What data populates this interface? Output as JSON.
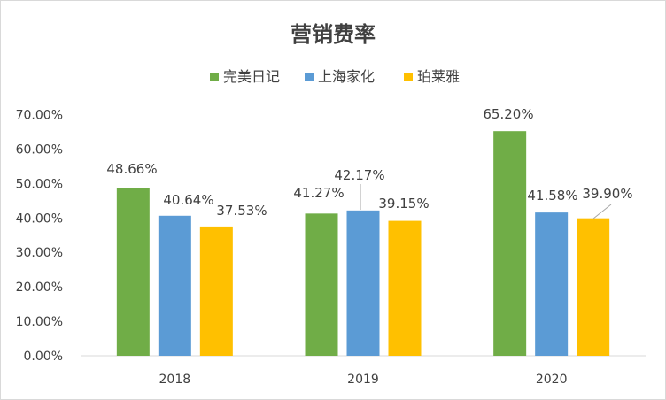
{
  "chart_data": {
    "type": "bar",
    "title": "营销费率",
    "categories": [
      "2018",
      "2019",
      "2020"
    ],
    "series": [
      {
        "name": "完美日记",
        "color": "#70ad47",
        "values": [
          48.66,
          41.27,
          65.2
        ],
        "labels": [
          "48.66%",
          "41.27%",
          "65.20%"
        ]
      },
      {
        "name": "上海家化",
        "color": "#5b9bd5",
        "values": [
          40.64,
          42.17,
          41.58
        ],
        "labels": [
          "40.64%",
          "42.17%",
          "41.58%"
        ]
      },
      {
        "name": "珀莱雅",
        "color": "#ffc000",
        "values": [
          37.53,
          39.15,
          39.9
        ],
        "labels": [
          "37.53%",
          "39.15%",
          "39.90%"
        ]
      }
    ],
    "yticks": [
      "0.00%",
      "10.00%",
      "20.00%",
      "30.00%",
      "40.00%",
      "50.00%",
      "60.00%",
      "70.00%"
    ],
    "ylim": [
      0,
      70
    ],
    "legend_position": "top",
    "grid": false,
    "xlabel": "",
    "ylabel": ""
  }
}
